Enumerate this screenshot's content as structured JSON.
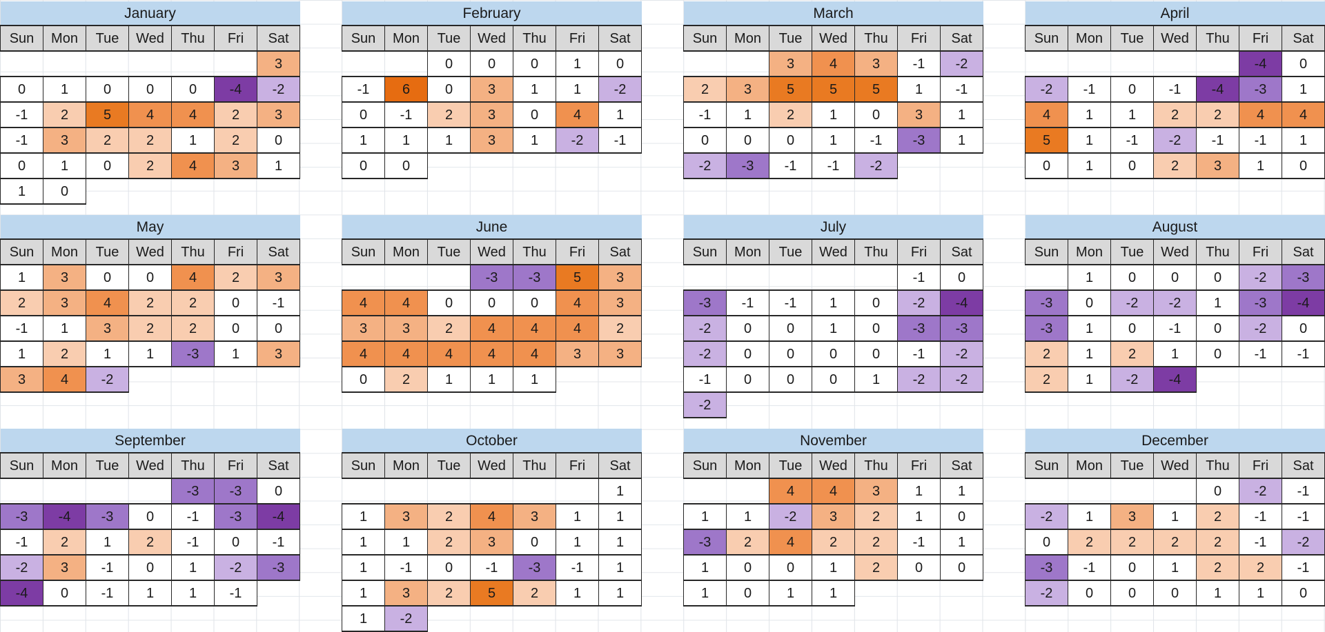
{
  "chart_data": {
    "type": "heatmap",
    "subtype": "calendar-year-heatmap",
    "title": "",
    "day_headers": [
      "Sun",
      "Mon",
      "Tue",
      "Wed",
      "Thu",
      "Fri",
      "Sat"
    ],
    "value_range": [
      -4,
      6
    ],
    "legend": "none",
    "months": [
      {
        "name": "January",
        "weeks": [
          [
            null,
            null,
            null,
            null,
            null,
            null,
            3
          ],
          [
            0,
            1,
            0,
            0,
            0,
            -4,
            -2
          ],
          [
            -1,
            2,
            5,
            4,
            4,
            2,
            3
          ],
          [
            -1,
            3,
            2,
            2,
            1,
            2,
            0
          ],
          [
            0,
            1,
            0,
            2,
            4,
            3,
            1
          ],
          [
            1,
            0,
            null,
            null,
            null,
            null,
            null
          ]
        ]
      },
      {
        "name": "February",
        "weeks": [
          [
            null,
            null,
            0,
            0,
            0,
            1,
            0
          ],
          [
            -1,
            6,
            0,
            3,
            1,
            1,
            -2
          ],
          [
            0,
            -1,
            2,
            3,
            0,
            4,
            1
          ],
          [
            1,
            1,
            1,
            3,
            1,
            -2,
            -1
          ],
          [
            0,
            0,
            null,
            null,
            null,
            null,
            null
          ]
        ]
      },
      {
        "name": "March",
        "weeks": [
          [
            null,
            null,
            3,
            4,
            3,
            -1,
            -2
          ],
          [
            2,
            3,
            5,
            5,
            5,
            1,
            -1
          ],
          [
            -1,
            1,
            2,
            1,
            0,
            3,
            1
          ],
          [
            0,
            0,
            0,
            1,
            -1,
            -3,
            1
          ],
          [
            -2,
            -3,
            -1,
            -1,
            -2,
            null,
            null
          ]
        ]
      },
      {
        "name": "April",
        "weeks": [
          [
            null,
            null,
            null,
            null,
            null,
            -4,
            0
          ],
          [
            -2,
            -1,
            0,
            -1,
            -4,
            -3,
            1
          ],
          [
            4,
            1,
            1,
            2,
            2,
            4,
            4
          ],
          [
            5,
            1,
            -1,
            -2,
            -1,
            -1,
            1
          ],
          [
            0,
            1,
            0,
            2,
            3,
            1,
            0
          ]
        ]
      },
      {
        "name": "May",
        "weeks": [
          [
            1,
            3,
            0,
            0,
            4,
            2,
            3
          ],
          [
            2,
            3,
            4,
            2,
            2,
            0,
            -1
          ],
          [
            -1,
            1,
            3,
            2,
            2,
            0,
            0
          ],
          [
            1,
            2,
            1,
            1,
            -3,
            1,
            3
          ],
          [
            3,
            4,
            -2,
            null,
            null,
            null,
            null
          ]
        ]
      },
      {
        "name": "June",
        "weeks": [
          [
            null,
            null,
            null,
            -3,
            -3,
            5,
            3
          ],
          [
            4,
            4,
            0,
            0,
            0,
            4,
            3
          ],
          [
            3,
            3,
            2,
            4,
            4,
            4,
            2
          ],
          [
            4,
            4,
            4,
            4,
            4,
            3,
            3
          ],
          [
            0,
            2,
            1,
            1,
            1,
            null,
            null
          ]
        ]
      },
      {
        "name": "July",
        "weeks": [
          [
            null,
            null,
            null,
            null,
            null,
            -1,
            0
          ],
          [
            -3,
            -1,
            -1,
            1,
            0,
            -2,
            -4
          ],
          [
            -2,
            0,
            0,
            1,
            0,
            -3,
            -3
          ],
          [
            -2,
            0,
            0,
            0,
            0,
            -1,
            -2
          ],
          [
            -1,
            0,
            0,
            0,
            1,
            -2,
            -2
          ],
          [
            -2,
            null,
            null,
            null,
            null,
            null,
            null
          ]
        ]
      },
      {
        "name": "August",
        "weeks": [
          [
            null,
            1,
            0,
            0,
            0,
            -2,
            -3
          ],
          [
            -3,
            0,
            -2,
            -2,
            1,
            -3,
            -4
          ],
          [
            -3,
            1,
            0,
            -1,
            0,
            -2,
            0
          ],
          [
            2,
            1,
            2,
            1,
            0,
            -1,
            -1
          ],
          [
            2,
            1,
            -2,
            -4,
            null,
            null,
            null
          ]
        ]
      },
      {
        "name": "September",
        "weeks": [
          [
            null,
            null,
            null,
            null,
            -3,
            -3,
            0
          ],
          [
            -3,
            -4,
            -3,
            0,
            -1,
            -3,
            -4
          ],
          [
            -1,
            2,
            1,
            2,
            -1,
            0,
            -1
          ],
          [
            -2,
            3,
            -1,
            0,
            1,
            -2,
            -3
          ],
          [
            -4,
            0,
            -1,
            1,
            1,
            -1,
            null
          ]
        ]
      },
      {
        "name": "October",
        "weeks": [
          [
            null,
            null,
            null,
            null,
            null,
            null,
            1
          ],
          [
            1,
            3,
            2,
            4,
            3,
            1,
            1
          ],
          [
            1,
            1,
            2,
            3,
            0,
            1,
            1
          ],
          [
            1,
            -1,
            0,
            -1,
            -3,
            -1,
            1
          ],
          [
            1,
            3,
            2,
            5,
            2,
            1,
            1
          ],
          [
            1,
            -2,
            null,
            null,
            null,
            null,
            null
          ]
        ]
      },
      {
        "name": "November",
        "weeks": [
          [
            null,
            null,
            4,
            4,
            3,
            1,
            1
          ],
          [
            1,
            1,
            -2,
            3,
            2,
            1,
            0
          ],
          [
            -3,
            2,
            4,
            2,
            2,
            -1,
            1
          ],
          [
            1,
            0,
            0,
            1,
            2,
            0,
            0
          ],
          [
            1,
            0,
            1,
            1,
            null,
            null,
            null
          ]
        ]
      },
      {
        "name": "December",
        "weeks": [
          [
            null,
            null,
            null,
            null,
            0,
            -2,
            -1
          ],
          [
            -2,
            1,
            3,
            1,
            2,
            -1,
            -1
          ],
          [
            0,
            2,
            2,
            2,
            2,
            -1,
            -2
          ],
          [
            -3,
            -1,
            0,
            1,
            2,
            2,
            -1
          ],
          [
            -2,
            0,
            0,
            0,
            1,
            1,
            0
          ]
        ]
      }
    ]
  },
  "colors": {
    "title_bg": "#BDD7EE",
    "header_bg": "#D9D9D9",
    "border_dark": "#262626",
    "gridline": "#DFE3E8",
    "text": "#1A1A1A",
    "scale": {
      "-4": "#7D3CA4",
      "-3": "#9E77C9",
      "-2": "#C9B1E2",
      "-1": "#FFFFFF",
      "0": "#FFFFFF",
      "1": "#FFFFFF",
      "2": "#F9CDB0",
      "3": "#F4B183",
      "4": "#F0914F",
      "5": "#E97A22",
      "6": "#E66C11"
    }
  }
}
